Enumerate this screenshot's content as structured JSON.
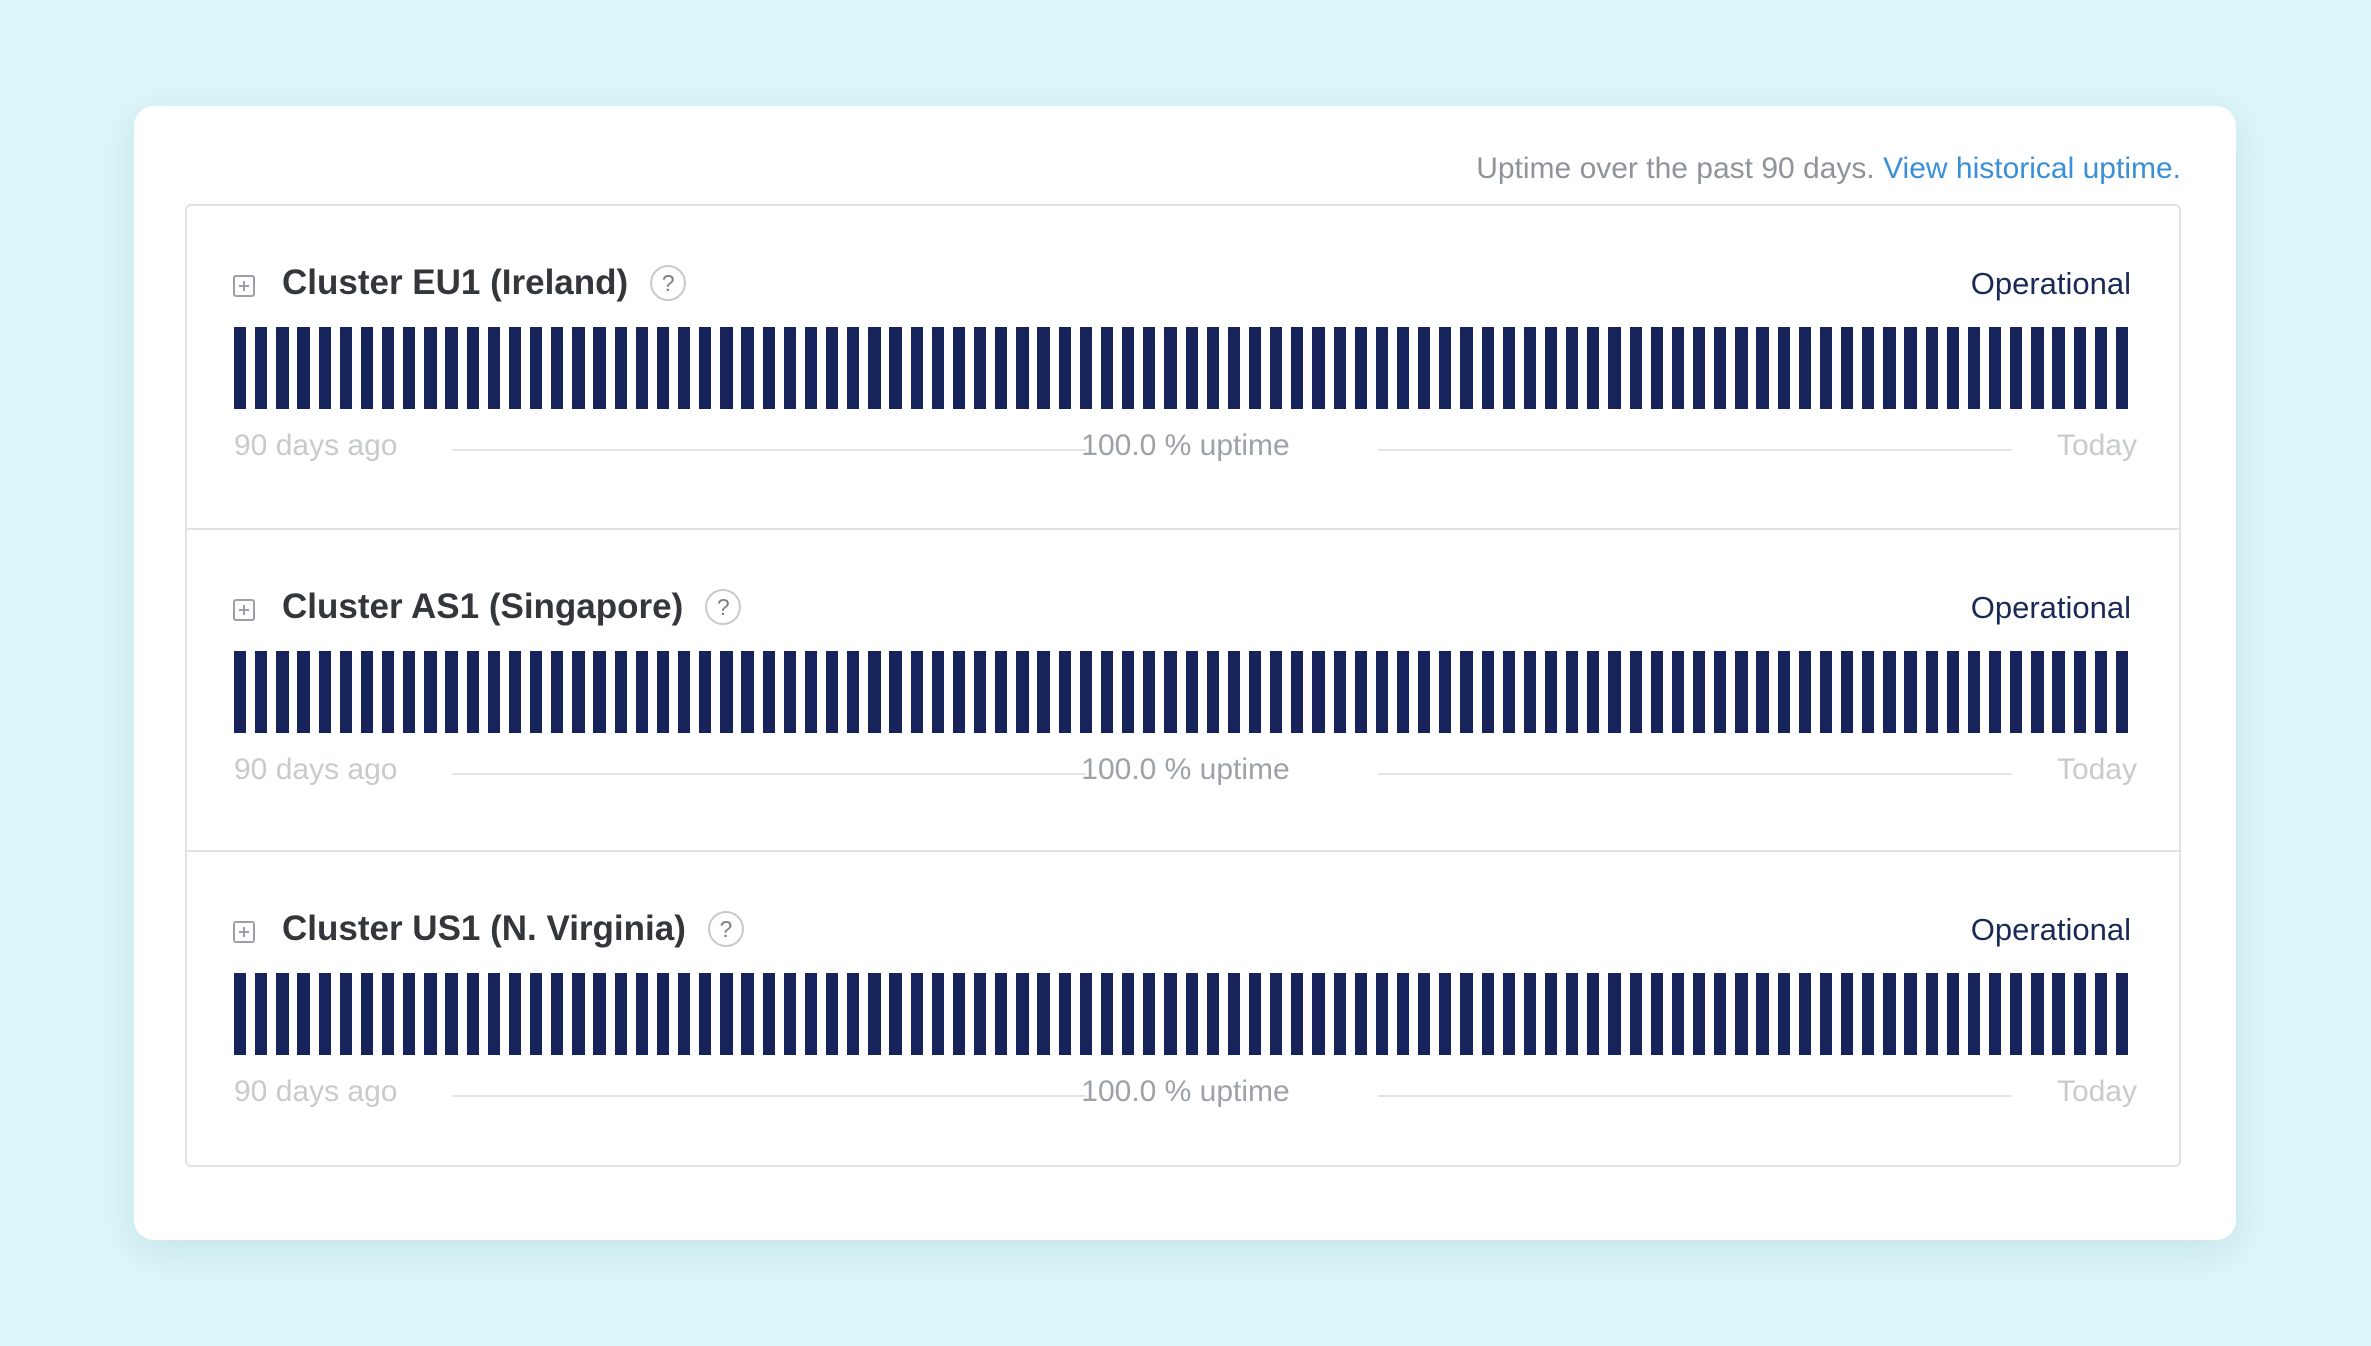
{
  "header": {
    "text": "Uptime over the past 90 days.",
    "link": "View historical uptime."
  },
  "colors": {
    "bar": "#16245b",
    "status": "#1a2a57",
    "link": "#3b8fd6",
    "background": "#ddf6fa"
  },
  "icons": {
    "expand": "plus-square-icon",
    "help": "question-circle-icon"
  },
  "components": [
    {
      "name": "Cluster EU1 (Ireland)",
      "help": "?",
      "status": "Operational",
      "days": 90,
      "uptime_percent": 100.0,
      "footer": {
        "start": "90 days ago",
        "uptime": "100.0 % uptime",
        "end": "Today"
      }
    },
    {
      "name": "Cluster AS1 (Singapore)",
      "help": "?",
      "status": "Operational",
      "days": 90,
      "uptime_percent": 100.0,
      "footer": {
        "start": "90 days ago",
        "uptime": "100.0 % uptime",
        "end": "Today"
      }
    },
    {
      "name": "Cluster US1 (N. Virginia)",
      "help": "?",
      "status": "Operational",
      "days": 90,
      "uptime_percent": 100.0,
      "footer": {
        "start": "90 days ago",
        "uptime": "100.0 % uptime",
        "end": "Today"
      }
    }
  ]
}
